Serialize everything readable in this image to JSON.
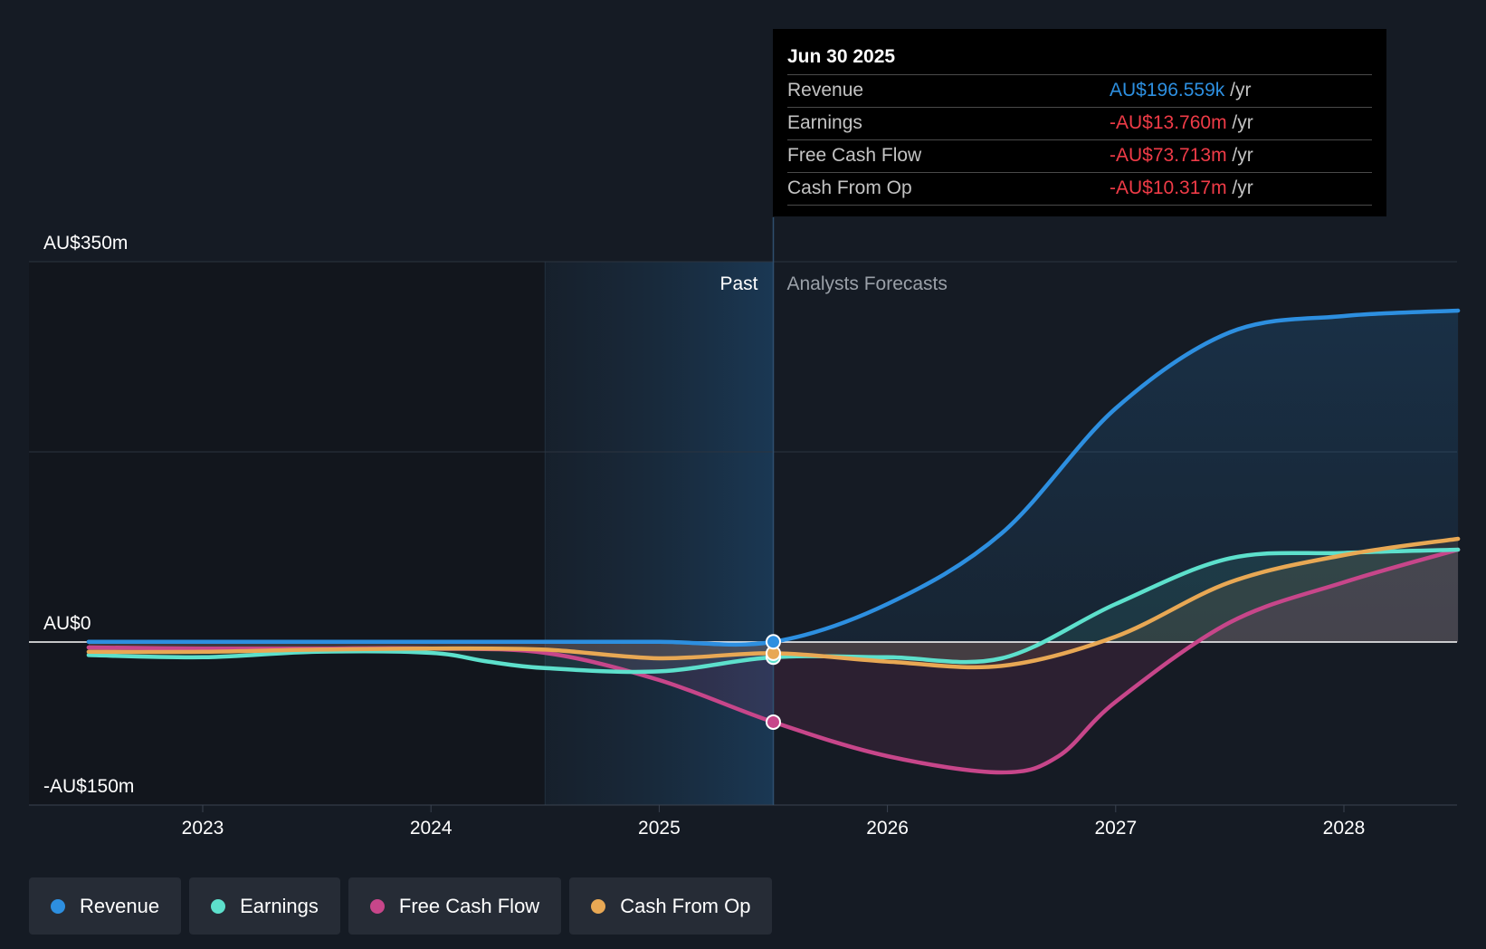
{
  "chart_data": {
    "type": "area",
    "y_unit": "AU$m",
    "ylim": [
      -150,
      350
    ],
    "xlim": [
      2022.25,
      2028.5
    ],
    "y_labels": [
      "AU$350m",
      "AU$0",
      "-AU$150m"
    ],
    "x_ticks": [
      "2023",
      "2024",
      "2025",
      "2026",
      "2027",
      "2028"
    ],
    "divider_year": 2025.5,
    "past_label": "Past",
    "forecast_label": "Analysts Forecasts",
    "series": [
      {
        "name": "Revenue",
        "color": "#2d8fe0",
        "points": [
          [
            2022.5,
            0.2
          ],
          [
            2023,
            0.2
          ],
          [
            2024,
            0.2
          ],
          [
            2024.5,
            0.2
          ],
          [
            2025,
            0.2
          ],
          [
            2025.5,
            0.2
          ],
          [
            2026,
            35
          ],
          [
            2026.5,
            100
          ],
          [
            2027,
            215
          ],
          [
            2027.5,
            285
          ],
          [
            2028,
            300
          ],
          [
            2028.5,
            305
          ]
        ]
      },
      {
        "name": "Earnings",
        "color": "#5de0cc",
        "points": [
          [
            2022.5,
            -12
          ],
          [
            2023,
            -14
          ],
          [
            2023.5,
            -9
          ],
          [
            2024,
            -10
          ],
          [
            2024.25,
            -18
          ],
          [
            2024.5,
            -24
          ],
          [
            2025,
            -27
          ],
          [
            2025.5,
            -14
          ],
          [
            2026,
            -14
          ],
          [
            2026.5,
            -15
          ],
          [
            2027,
            35
          ],
          [
            2027.5,
            77
          ],
          [
            2028,
            82
          ],
          [
            2028.5,
            85
          ]
        ]
      },
      {
        "name": "Free Cash Flow",
        "color": "#c7468a",
        "points": [
          [
            2022.5,
            -5
          ],
          [
            2023,
            -6
          ],
          [
            2023.5,
            -6
          ],
          [
            2024,
            -6
          ],
          [
            2024.5,
            -10
          ],
          [
            2025,
            -35
          ],
          [
            2025.5,
            -73.7
          ],
          [
            2026,
            -105
          ],
          [
            2026.5,
            -120
          ],
          [
            2026.75,
            -105
          ],
          [
            2027,
            -55
          ],
          [
            2027.5,
            18
          ],
          [
            2028,
            55
          ],
          [
            2028.5,
            85
          ]
        ]
      },
      {
        "name": "Cash From Op",
        "color": "#e8a854",
        "points": [
          [
            2022.5,
            -9
          ],
          [
            2023,
            -9
          ],
          [
            2023.5,
            -7
          ],
          [
            2024,
            -6
          ],
          [
            2024.5,
            -7
          ],
          [
            2025,
            -15
          ],
          [
            2025.5,
            -10.3
          ],
          [
            2026,
            -18
          ],
          [
            2026.5,
            -22
          ],
          [
            2027,
            5
          ],
          [
            2027.5,
            55
          ],
          [
            2028,
            80
          ],
          [
            2028.5,
            95
          ]
        ]
      }
    ]
  },
  "tooltip": {
    "date": "Jun 30 2025",
    "unit": "/yr",
    "rows": [
      {
        "label": "Revenue",
        "value": "AU$196.559k",
        "color": "#2d8fe0"
      },
      {
        "label": "Earnings",
        "value": "-AU$13.760m",
        "color": "#ef3b47"
      },
      {
        "label": "Free Cash Flow",
        "value": "-AU$73.713m",
        "color": "#ef3b47"
      },
      {
        "label": "Cash From Op",
        "value": "-AU$10.317m",
        "color": "#ef3b47"
      }
    ]
  },
  "legend": [
    {
      "label": "Revenue",
      "color": "#2d8fe0"
    },
    {
      "label": "Earnings",
      "color": "#5de0cc"
    },
    {
      "label": "Free Cash Flow",
      "color": "#c7468a"
    },
    {
      "label": "Cash From Op",
      "color": "#e8a854"
    }
  ]
}
